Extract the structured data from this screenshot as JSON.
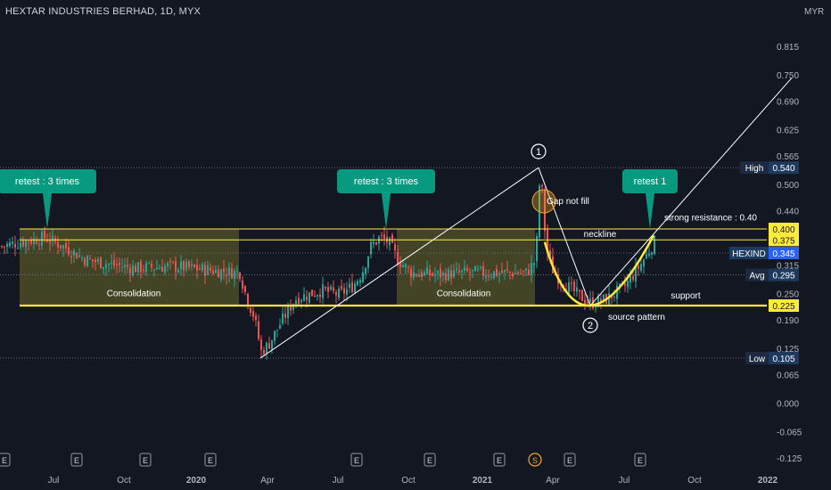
{
  "header": {
    "title": "HEXTAR INDUSTRIES BERHAD, 1D, MYX",
    "currency": "MYR"
  },
  "colors": {
    "background": "#131722",
    "up": "#26a69a",
    "down": "#ef5350",
    "yellow": "#ffeb3b",
    "white": "#ffffff",
    "callout": "#089981",
    "zone_fill": "#6b6a2a"
  },
  "chart_data": {
    "type": "candlestick",
    "ylim": [
      -0.15,
      0.9
    ],
    "y_ticks": [
      "0.815",
      "0.750",
      "0.690",
      "0.625",
      "0.565",
      "0.500",
      "0.440",
      "0.375",
      "0.315",
      "0.250",
      "0.190",
      "0.125",
      "0.065",
      "0.000",
      "-0.065",
      "-0.125"
    ],
    "x_ticks": [
      "Jul",
      "Oct",
      "2020",
      "Apr",
      "Jul",
      "Oct",
      "2021",
      "Apr",
      "Jul",
      "Oct",
      "2022"
    ],
    "x_tick_index": [
      60,
      139,
      220,
      300,
      379,
      458,
      541,
      620,
      700,
      779,
      861
    ],
    "axis_labels": [
      {
        "label": "High",
        "value": "0.540",
        "y": 0.54,
        "style": "plain"
      },
      {
        "label": "",
        "value": "0.400",
        "y": 0.4,
        "style": "yellow"
      },
      {
        "label": "",
        "value": "0.375",
        "y": 0.375,
        "style": "yellow"
      },
      {
        "label": "HEXIND",
        "value": "0.345",
        "y": 0.345,
        "style": "blue"
      },
      {
        "label": "Avg",
        "value": "0.295",
        "y": 0.295,
        "style": "plain"
      },
      {
        "label": "",
        "value": "0.225",
        "y": 0.225,
        "style": "yellow"
      },
      {
        "label": "Low",
        "value": "0.105",
        "y": 0.105,
        "style": "plain"
      }
    ],
    "horizontal_lines": [
      {
        "name": "strong-resistance-upper",
        "y": 0.4,
        "color": "#ffeb3b"
      },
      {
        "name": "strong-resistance-lower",
        "y": 0.375,
        "color": "#ffeb3b"
      },
      {
        "name": "support",
        "y": 0.225,
        "color": "#ffeb3b"
      }
    ],
    "dotted_lines": [
      0.54,
      0.345,
      0.295,
      0.105
    ],
    "zones": [
      {
        "name": "consolidation-1",
        "label": "Consolidation",
        "x": [
          22,
          268
        ],
        "y": [
          0.225,
          0.4
        ]
      },
      {
        "name": "consolidation-2",
        "label": "Consolidation",
        "x": [
          445,
          600
        ],
        "y": [
          0.225,
          0.4
        ]
      }
    ],
    "trend_lines": [
      {
        "name": "rise-line",
        "points": [
          [
            292,
            0.105
          ],
          [
            604,
            0.54
          ]
        ]
      },
      {
        "name": "drop-line",
        "points": [
          [
            604,
            0.54
          ],
          [
            662,
            0.225
          ]
        ]
      },
      {
        "name": "breakout-line",
        "points": [
          [
            662,
            0.225
          ],
          [
            888,
            0.745
          ]
        ]
      }
    ],
    "callouts": [
      {
        "name": "retest-left",
        "text": "retest : 3 times",
        "x": 53,
        "tip": 0.4
      },
      {
        "name": "retest-mid",
        "text": "retest : 3 times",
        "x": 433,
        "tip": 0.4
      },
      {
        "name": "retest-right",
        "text": "retest 1",
        "x": 729,
        "tip": 0.4
      }
    ],
    "annotations": [
      {
        "name": "neckline",
        "text": "neckline",
        "x": 673,
        "y": 0.388
      },
      {
        "name": "strong-resistance",
        "text": "strong resistance : 0.40",
        "x": 797,
        "y": 0.425
      },
      {
        "name": "support",
        "text": "support",
        "x": 769,
        "y": 0.247
      },
      {
        "name": "consolidation-label-1",
        "text": "Consolidation",
        "x": 150,
        "y": 0.252
      },
      {
        "name": "consolidation-label-2",
        "text": "Consolidation",
        "x": 520,
        "y": 0.252
      },
      {
        "name": "gap-not-fill",
        "text": "Gap not fill",
        "x": 637,
        "y": 0.463
      },
      {
        "name": "source-pattern",
        "text": "source pattern",
        "x": 714,
        "y": 0.198
      }
    ],
    "markers": [
      {
        "name": "point-1",
        "text": "1",
        "x": 604,
        "y": 0.577
      },
      {
        "name": "point-2",
        "text": "2",
        "x": 662,
        "y": 0.18
      }
    ],
    "gap_circle": {
      "x": 610,
      "y": 0.463
    },
    "cup_curve": [
      [
        611,
        0.37
      ],
      [
        662,
        0.225
      ],
      [
        733,
        0.385
      ]
    ],
    "events": [
      {
        "type": "E",
        "x": 5
      },
      {
        "type": "E",
        "x": 86
      },
      {
        "type": "E",
        "x": 163
      },
      {
        "type": "E",
        "x": 236
      },
      {
        "type": "E",
        "x": 400
      },
      {
        "type": "E",
        "x": 482
      },
      {
        "type": "E",
        "x": 560
      },
      {
        "type": "S",
        "x": 600
      },
      {
        "type": "E",
        "x": 639
      },
      {
        "type": "E",
        "x": 718
      }
    ],
    "price_path": [
      [
        0,
        0.36
      ],
      [
        22,
        0.37
      ],
      [
        50,
        0.38
      ],
      [
        70,
        0.36
      ],
      [
        95,
        0.33
      ],
      [
        120,
        0.32
      ],
      [
        150,
        0.31
      ],
      [
        190,
        0.315
      ],
      [
        240,
        0.305
      ],
      [
        268,
        0.3
      ],
      [
        276,
        0.24
      ],
      [
        284,
        0.2
      ],
      [
        292,
        0.12
      ],
      [
        300,
        0.135
      ],
      [
        315,
        0.19
      ],
      [
        330,
        0.24
      ],
      [
        360,
        0.26
      ],
      [
        380,
        0.25
      ],
      [
        395,
        0.27
      ],
      [
        405,
        0.3
      ],
      [
        415,
        0.36
      ],
      [
        425,
        0.38
      ],
      [
        435,
        0.37
      ],
      [
        445,
        0.33
      ],
      [
        460,
        0.3
      ],
      [
        490,
        0.295
      ],
      [
        520,
        0.3
      ],
      [
        560,
        0.3
      ],
      [
        590,
        0.3
      ],
      [
        600,
        0.33
      ],
      [
        604,
        0.5
      ],
      [
        608,
        0.48
      ],
      [
        611,
        0.36
      ],
      [
        620,
        0.3
      ],
      [
        635,
        0.27
      ],
      [
        650,
        0.245
      ],
      [
        662,
        0.23
      ],
      [
        680,
        0.24
      ],
      [
        700,
        0.27
      ],
      [
        718,
        0.32
      ],
      [
        733,
        0.37
      ]
    ]
  }
}
